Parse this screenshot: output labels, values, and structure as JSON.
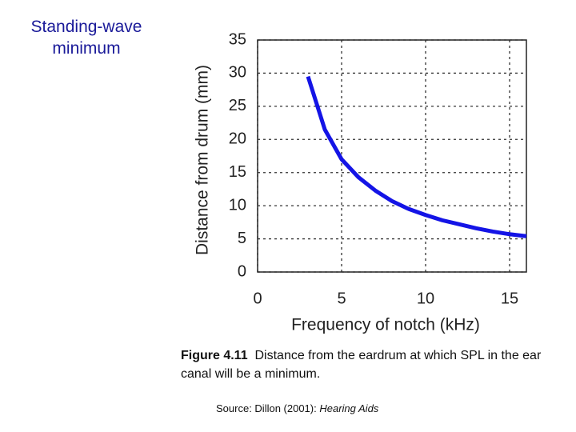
{
  "heading": "Standing-wave minimum",
  "chart_data": {
    "type": "line",
    "x_label": "Frequency of notch (kHz)",
    "y_label": "Distance from drum (mm)",
    "x": [
      3,
      4,
      5,
      6,
      7,
      8,
      9,
      10,
      11,
      12,
      13,
      14,
      15,
      16
    ],
    "values": [
      29.5,
      21.5,
      17,
      14.3,
      12.3,
      10.7,
      9.5,
      8.6,
      7.8,
      7.2,
      6.6,
      6.1,
      5.7,
      5.4
    ],
    "color": "#1414e6",
    "xlim": [
      0,
      16
    ],
    "ylim": [
      0,
      35
    ],
    "xticks": [
      0,
      5,
      10,
      15
    ],
    "yticks": [
      0,
      5,
      10,
      15,
      20,
      25,
      30,
      35
    ],
    "grid": true
  },
  "caption": {
    "label": "Figure 4.11",
    "text": "Distance from the eardrum at which SPL in the ear canal will be a minimum."
  },
  "source": {
    "prefix": "Source:  Dillon (2001):",
    "title": "Hearing Aids"
  }
}
